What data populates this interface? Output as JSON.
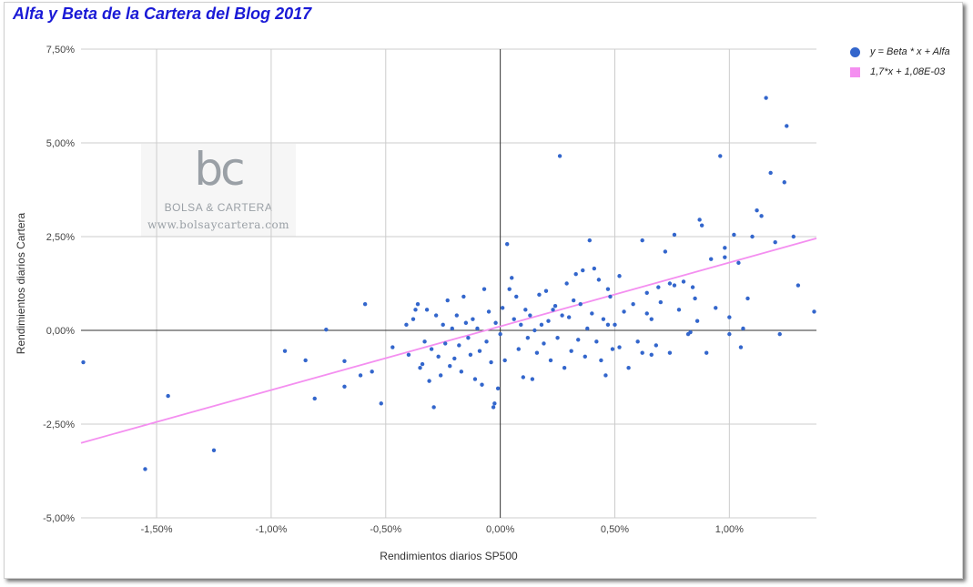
{
  "chart_data": {
    "type": "scatter",
    "title": "Alfa y Beta de la Cartera del Blog 2017",
    "xlabel": "Rendimientos diarios SP500",
    "ylabel": "Rendimientos diarios Cartera",
    "xlim": [
      -1.83,
      1.38
    ],
    "ylim": [
      -5.0,
      7.5
    ],
    "x_ticks": [
      -1.5,
      -1.0,
      -0.5,
      0.0,
      0.5,
      1.0
    ],
    "x_tick_labels": [
      "-1,50%",
      "-1,00%",
      "-0,50%",
      "0,00%",
      "0,50%",
      "1,00%"
    ],
    "y_ticks": [
      -5.0,
      -2.5,
      0.0,
      2.5,
      5.0,
      7.5
    ],
    "y_tick_labels": [
      "-5,00%",
      "-2,50%",
      "0,00%",
      "2,50%",
      "5,00%",
      "7,50%"
    ],
    "grid": true,
    "legend_position": "right",
    "series": [
      {
        "name": "y = Beta * x + Alfa",
        "color": "#3366cc",
        "points": [
          [
            -1.82,
            -0.85
          ],
          [
            -1.55,
            -3.7
          ],
          [
            -1.45,
            -1.75
          ],
          [
            -1.25,
            -3.2
          ],
          [
            -0.94,
            -0.55
          ],
          [
            -0.85,
            -0.8
          ],
          [
            -0.81,
            -1.82
          ],
          [
            -0.76,
            0.02
          ],
          [
            -0.68,
            -0.82
          ],
          [
            -0.68,
            -1.5
          ],
          [
            -0.61,
            -1.2
          ],
          [
            -0.59,
            0.7
          ],
          [
            -0.56,
            -1.1
          ],
          [
            -0.52,
            -1.95
          ],
          [
            -0.47,
            -0.45
          ],
          [
            -0.41,
            0.15
          ],
          [
            -0.4,
            -0.65
          ],
          [
            -0.38,
            0.3
          ],
          [
            -0.37,
            0.55
          ],
          [
            -0.36,
            0.7
          ],
          [
            -0.35,
            -1.0
          ],
          [
            -0.34,
            -0.9
          ],
          [
            -0.33,
            -0.3
          ],
          [
            -0.32,
            0.55
          ],
          [
            -0.31,
            -1.35
          ],
          [
            -0.3,
            -0.5
          ],
          [
            -0.29,
            -2.05
          ],
          [
            -0.28,
            0.4
          ],
          [
            -0.27,
            -0.7
          ],
          [
            -0.26,
            -1.2
          ],
          [
            -0.25,
            0.15
          ],
          [
            -0.24,
            -0.35
          ],
          [
            -0.23,
            0.8
          ],
          [
            -0.22,
            -0.95
          ],
          [
            -0.21,
            0.05
          ],
          [
            -0.2,
            -0.75
          ],
          [
            -0.19,
            0.4
          ],
          [
            -0.18,
            -0.4
          ],
          [
            -0.17,
            -1.1
          ],
          [
            -0.16,
            0.9
          ],
          [
            -0.15,
            0.2
          ],
          [
            -0.14,
            -0.2
          ],
          [
            -0.13,
            -0.65
          ],
          [
            -0.12,
            0.3
          ],
          [
            -0.11,
            -1.3
          ],
          [
            -0.1,
            0.05
          ],
          [
            -0.09,
            -0.55
          ],
          [
            -0.08,
            -1.45
          ],
          [
            -0.07,
            1.1
          ],
          [
            -0.06,
            -0.3
          ],
          [
            -0.05,
            0.5
          ],
          [
            -0.04,
            -0.85
          ],
          [
            -0.03,
            -2.05
          ],
          [
            -0.025,
            -1.95
          ],
          [
            -0.02,
            0.2
          ],
          [
            -0.01,
            -1.55
          ],
          [
            0.0,
            -0.1
          ],
          [
            0.01,
            0.6
          ],
          [
            0.02,
            -0.8
          ],
          [
            0.03,
            2.3
          ],
          [
            0.04,
            1.1
          ],
          [
            0.05,
            1.4
          ],
          [
            0.06,
            0.3
          ],
          [
            0.07,
            0.9
          ],
          [
            0.08,
            -0.5
          ],
          [
            0.09,
            0.15
          ],
          [
            0.1,
            -1.25
          ],
          [
            0.11,
            0.55
          ],
          [
            0.12,
            -0.2
          ],
          [
            0.13,
            0.4
          ],
          [
            0.14,
            -1.3
          ],
          [
            0.15,
            0.0
          ],
          [
            0.16,
            -0.6
          ],
          [
            0.17,
            0.95
          ],
          [
            0.18,
            0.15
          ],
          [
            0.19,
            -0.35
          ],
          [
            0.2,
            1.05
          ],
          [
            0.21,
            0.25
          ],
          [
            0.22,
            -0.8
          ],
          [
            0.23,
            0.55
          ],
          [
            0.24,
            0.65
          ],
          [
            0.25,
            -0.2
          ],
          [
            0.26,
            4.65
          ],
          [
            0.27,
            0.4
          ],
          [
            0.28,
            -1.0
          ],
          [
            0.29,
            1.25
          ],
          [
            0.3,
            0.35
          ],
          [
            0.31,
            -0.55
          ],
          [
            0.32,
            0.8
          ],
          [
            0.33,
            1.5
          ],
          [
            0.34,
            -0.25
          ],
          [
            0.35,
            0.7
          ],
          [
            0.36,
            1.6
          ],
          [
            0.37,
            -0.7
          ],
          [
            0.38,
            0.05
          ],
          [
            0.39,
            2.4
          ],
          [
            0.4,
            0.45
          ],
          [
            0.41,
            1.65
          ],
          [
            0.42,
            -0.3
          ],
          [
            0.43,
            1.35
          ],
          [
            0.44,
            -0.8
          ],
          [
            0.45,
            0.3
          ],
          [
            0.46,
            -1.2
          ],
          [
            0.47,
            1.1
          ],
          [
            0.48,
            0.9
          ],
          [
            0.49,
            -0.5
          ],
          [
            0.5,
            0.15
          ],
          [
            0.52,
            1.45
          ],
          [
            0.54,
            0.5
          ],
          [
            0.56,
            -1.0
          ],
          [
            0.58,
            0.7
          ],
          [
            0.6,
            -0.3
          ],
          [
            0.62,
            2.4
          ],
          [
            0.64,
            1.0
          ],
          [
            0.66,
            0.3
          ],
          [
            0.68,
            -0.4
          ],
          [
            0.7,
            0.75
          ],
          [
            0.72,
            2.1
          ],
          [
            0.74,
            -0.6
          ],
          [
            0.76,
            1.2
          ],
          [
            0.78,
            0.55
          ],
          [
            0.8,
            1.3
          ],
          [
            0.82,
            -0.1
          ],
          [
            0.84,
            1.15
          ],
          [
            0.86,
            0.25
          ],
          [
            0.88,
            2.8
          ],
          [
            0.9,
            -0.6
          ],
          [
            0.92,
            1.9
          ],
          [
            0.94,
            0.6
          ],
          [
            0.96,
            4.65
          ],
          [
            0.98,
            2.2
          ],
          [
            1.0,
            0.35
          ],
          [
            1.02,
            2.55
          ],
          [
            1.04,
            1.8
          ],
          [
            1.06,
            0.05
          ],
          [
            1.08,
            0.85
          ],
          [
            1.1,
            2.5
          ],
          [
            1.12,
            3.2
          ],
          [
            1.14,
            3.05
          ],
          [
            1.16,
            6.2
          ],
          [
            1.18,
            4.2
          ],
          [
            1.2,
            2.35
          ],
          [
            1.22,
            -0.1
          ],
          [
            1.24,
            3.95
          ],
          [
            1.25,
            5.45
          ],
          [
            1.28,
            2.5
          ],
          [
            1.3,
            1.2
          ],
          [
            1.37,
            0.5
          ],
          [
            0.47,
            0.15
          ],
          [
            0.52,
            -0.45
          ],
          [
            0.62,
            -0.6
          ],
          [
            0.64,
            0.45
          ],
          [
            0.66,
            -0.65
          ],
          [
            0.69,
            1.15
          ],
          [
            0.74,
            1.25
          ],
          [
            0.76,
            2.55
          ],
          [
            0.83,
            -0.05
          ],
          [
            0.85,
            0.85
          ],
          [
            0.87,
            2.95
          ],
          [
            0.98,
            1.95
          ],
          [
            1.0,
            -0.1
          ],
          [
            1.05,
            -0.45
          ]
        ]
      },
      {
        "name": "1,7*x + 1,08E-03",
        "color": "#f48ff0",
        "slope": 1.7,
        "intercept": 0.108
      }
    ]
  },
  "watermark": {
    "logo": "bc",
    "brand": "BOLSA & CARTERA",
    "url": "www.bolsaycartera.com"
  }
}
